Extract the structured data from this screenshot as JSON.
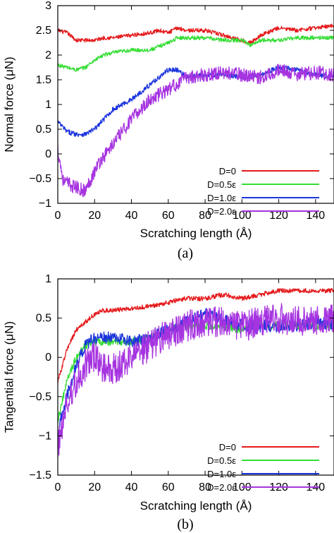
{
  "chart_data": [
    {
      "type": "line",
      "panel_label": "(a)",
      "xlabel": "Scratching length (Å)",
      "ylabel": "Normal force (μN)",
      "xlim": [
        0,
        150
      ],
      "ylim": [
        -1,
        3
      ],
      "xticks": [
        0,
        20,
        40,
        60,
        80,
        100,
        120,
        140
      ],
      "yticks": [
        -1,
        -0.5,
        0,
        0.5,
        1,
        1.5,
        2,
        2.5,
        3
      ],
      "grid": false,
      "legend": "bottom-right",
      "series": [
        {
          "name": "D=0",
          "color": "#e41a1c",
          "x": [
            0,
            5,
            10,
            15,
            20,
            25,
            30,
            40,
            50,
            55,
            60,
            65,
            70,
            80,
            90,
            100,
            105,
            110,
            120,
            130,
            140,
            150
          ],
          "y": [
            2.5,
            2.45,
            2.3,
            2.3,
            2.3,
            2.35,
            2.35,
            2.4,
            2.45,
            2.5,
            2.45,
            2.55,
            2.5,
            2.5,
            2.4,
            2.3,
            2.25,
            2.4,
            2.55,
            2.5,
            2.55,
            2.6
          ],
          "noise": 0.04
        },
        {
          "name": "D=0.5ε",
          "color": "#33dd33",
          "x": [
            0,
            5,
            10,
            15,
            20,
            25,
            30,
            40,
            50,
            60,
            65,
            70,
            80,
            90,
            100,
            105,
            110,
            120,
            130,
            140,
            150
          ],
          "y": [
            1.8,
            1.75,
            1.7,
            1.75,
            1.9,
            2.0,
            2.05,
            2.1,
            2.1,
            2.25,
            2.35,
            2.35,
            2.35,
            2.3,
            2.3,
            2.2,
            2.3,
            2.3,
            2.35,
            2.35,
            2.35
          ],
          "noise": 0.04
        },
        {
          "name": "D=1.0ε",
          "color": "#1a33dd",
          "x": [
            0,
            5,
            10,
            15,
            20,
            25,
            30,
            40,
            50,
            60,
            65,
            70,
            80,
            90,
            100,
            110,
            120,
            130,
            140,
            150
          ],
          "y": [
            0.65,
            0.45,
            0.4,
            0.4,
            0.5,
            0.7,
            0.9,
            1.1,
            1.4,
            1.7,
            1.7,
            1.55,
            1.6,
            1.6,
            1.55,
            1.6,
            1.75,
            1.7,
            1.6,
            1.55
          ],
          "noise": 0.05
        },
        {
          "name": "D=2.0ε",
          "color": "#a633e0",
          "x": [
            0,
            3,
            8,
            15,
            18,
            22,
            30,
            40,
            50,
            60,
            70,
            80,
            90,
            100,
            110,
            120,
            130,
            140,
            150
          ],
          "y": [
            0.1,
            -0.55,
            -0.65,
            -0.75,
            -0.5,
            -0.2,
            0.2,
            0.7,
            1.1,
            1.3,
            1.55,
            1.6,
            1.65,
            1.6,
            1.55,
            1.7,
            1.6,
            1.65,
            1.6
          ],
          "noise": 0.14
        }
      ]
    },
    {
      "type": "line",
      "panel_label": "(b)",
      "xlabel": "Scratching length (Å)",
      "ylabel": "Tangential force (μN)",
      "xlim": [
        0,
        150
      ],
      "ylim": [
        -1.5,
        1
      ],
      "xticks": [
        0,
        20,
        40,
        60,
        80,
        100,
        120,
        140
      ],
      "yticks": [
        -1.5,
        -1,
        -0.5,
        0,
        0.5,
        1
      ],
      "grid": false,
      "legend": "bottom-right",
      "series": [
        {
          "name": "D=0",
          "color": "#e41a1c",
          "x": [
            0,
            2,
            5,
            10,
            15,
            20,
            25,
            30,
            40,
            50,
            60,
            70,
            80,
            90,
            100,
            110,
            120,
            130,
            140,
            150
          ],
          "y": [
            -0.3,
            -0.15,
            0.1,
            0.35,
            0.45,
            0.55,
            0.6,
            0.6,
            0.62,
            0.65,
            0.7,
            0.75,
            0.75,
            0.8,
            0.75,
            0.8,
            0.85,
            0.85,
            0.85,
            0.85
          ],
          "noise": 0.03
        },
        {
          "name": "D=0.5ε",
          "color": "#33dd33",
          "x": [
            0,
            2,
            5,
            10,
            15,
            20,
            30,
            40,
            50,
            60,
            70,
            80,
            90,
            100,
            110,
            120,
            130,
            140,
            150
          ],
          "y": [
            -0.8,
            -0.6,
            -0.3,
            0.0,
            0.15,
            0.2,
            0.2,
            0.2,
            0.25,
            0.35,
            0.4,
            0.4,
            0.4,
            0.35,
            0.4,
            0.4,
            0.4,
            0.4,
            0.4
          ],
          "noise": 0.05
        },
        {
          "name": "D=1.0ε",
          "color": "#1a33dd",
          "x": [
            0,
            2,
            5,
            10,
            15,
            20,
            30,
            40,
            50,
            60,
            70,
            80,
            90,
            100,
            110,
            120,
            130,
            140,
            150
          ],
          "y": [
            -1.0,
            -0.75,
            -0.5,
            -0.1,
            0.15,
            0.25,
            0.25,
            0.2,
            0.25,
            0.35,
            0.45,
            0.55,
            0.5,
            0.4,
            0.4,
            0.4,
            0.4,
            0.45,
            0.4
          ],
          "noise": 0.08
        },
        {
          "name": "D=2.0ε",
          "color": "#a633e0",
          "x": [
            0,
            2,
            5,
            10,
            15,
            20,
            25,
            30,
            35,
            40,
            50,
            60,
            70,
            80,
            90,
            100,
            110,
            120,
            130,
            140,
            150
          ],
          "y": [
            -1.15,
            -0.9,
            -0.6,
            -0.3,
            -0.1,
            0.0,
            -0.15,
            -0.15,
            -0.1,
            0.0,
            0.15,
            0.3,
            0.4,
            0.45,
            0.45,
            0.4,
            0.45,
            0.5,
            0.45,
            0.45,
            0.5
          ],
          "noise": 0.2
        }
      ]
    }
  ]
}
